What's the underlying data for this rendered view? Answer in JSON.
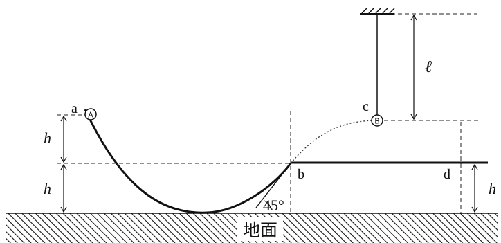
{
  "labels": {
    "point_a": "a",
    "point_b": "b",
    "point_c": "c",
    "point_d": "d",
    "ball_a": "A",
    "ball_b": "B",
    "height_left_upper": "h",
    "height_left_lower": "h",
    "height_right": "h",
    "length": "ℓ",
    "angle": "45°",
    "ground": "地面"
  },
  "colors": {
    "line": "#111111",
    "dash": "#222222",
    "background": "#ffffff"
  }
}
